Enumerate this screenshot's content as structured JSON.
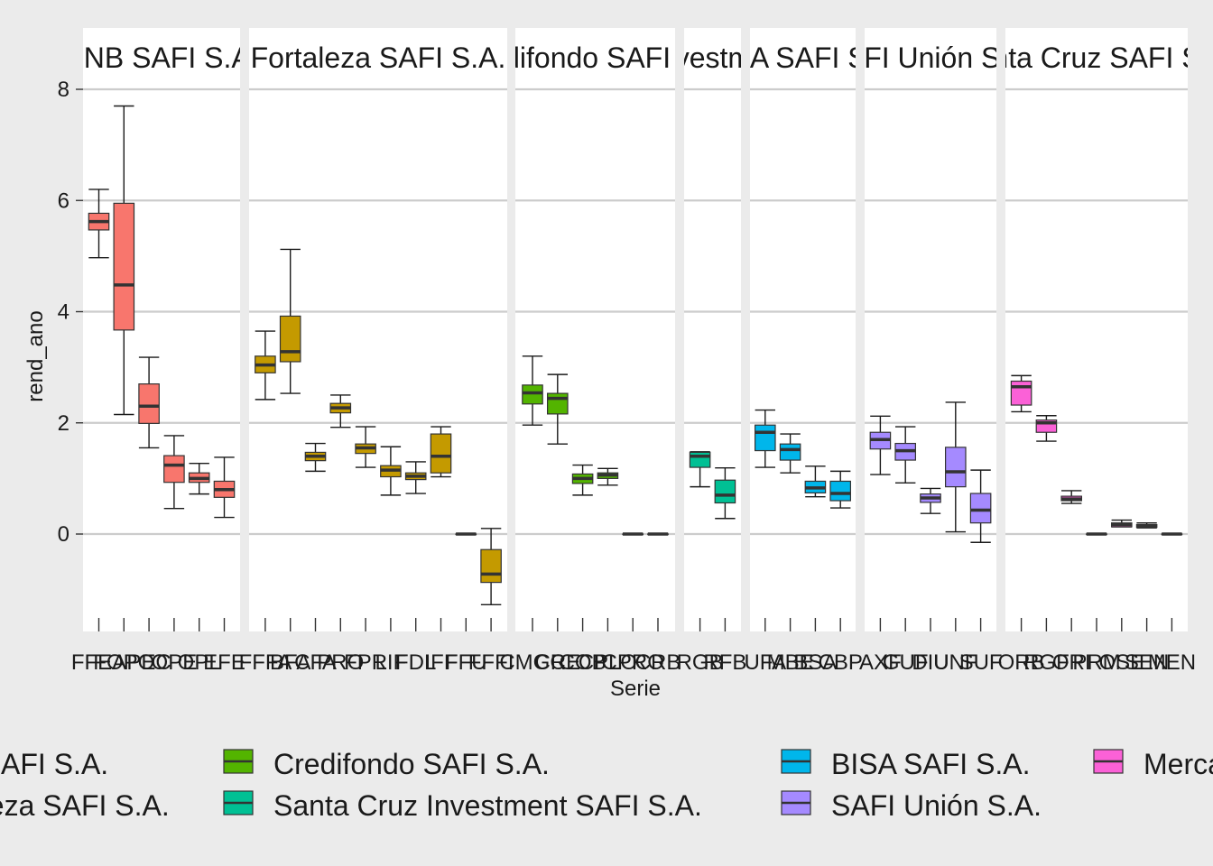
{
  "chart_data": {
    "type": "boxplot",
    "xlabel": "Serie",
    "ylabel": "rend_ano",
    "ylim": [
      -1.7,
      8.6
    ],
    "yticks": [
      0,
      2,
      4,
      6,
      8
    ],
    "legend_position": "bottom",
    "grid": true,
    "facets": [
      {
        "label": "BNB SAFI S.A.",
        "color": "#F8766D",
        "series": [
          {
            "name": "FFEA",
            "min": 4.97,
            "q1": 5.47,
            "median": 5.62,
            "q3": 5.77,
            "max": 6.2
          },
          {
            "name": "FOPO",
            "min": 2.15,
            "q1": 3.67,
            "median": 4.48,
            "q3": 5.95,
            "max": 7.7
          },
          {
            "name": "PEC",
            "min": 1.55,
            "q1": 1.99,
            "median": 2.3,
            "q3": 2.7,
            "max": 3.18
          },
          {
            "name": "OPE",
            "min": 0.46,
            "q1": 0.93,
            "median": 1.24,
            "q3": 1.41,
            "max": 1.77
          },
          {
            "name": "OPL",
            "min": 0.72,
            "q1": 0.93,
            "median": 1.0,
            "q3": 1.1,
            "max": 1.27
          },
          {
            "name": "EFE",
            "min": 0.3,
            "q1": 0.66,
            "median": 0.8,
            "q3": 0.95,
            "max": 1.38
          }
        ]
      },
      {
        "label": "Fortaleza SAFI S.A.",
        "color": "#C49A00",
        "series": [
          {
            "name": "FFFA",
            "min": 2.42,
            "q1": 2.9,
            "median": 3.04,
            "q3": 3.2,
            "max": 3.65
          },
          {
            "name": "BFA",
            "min": 2.53,
            "q1": 3.1,
            "median": 3.28,
            "q3": 3.92,
            "max": 5.12
          },
          {
            "name": "CFA",
            "min": 1.13,
            "q1": 1.32,
            "median": 1.4,
            "q3": 1.47,
            "max": 1.63
          },
          {
            "name": "PRO",
            "min": 1.92,
            "q1": 2.18,
            "median": 2.27,
            "q3": 2.35,
            "max": 2.5
          },
          {
            "name": "FPR",
            "min": 1.2,
            "q1": 1.45,
            "median": 1.55,
            "q3": 1.62,
            "max": 1.93
          },
          {
            "name": "LIF",
            "min": 0.7,
            "q1": 1.03,
            "median": 1.15,
            "q3": 1.23,
            "max": 1.57
          },
          {
            "name": "FDL",
            "min": 0.73,
            "q1": 0.98,
            "median": 1.04,
            "q3": 1.1,
            "max": 1.3
          },
          {
            "name": "IFF",
            "min": 1.03,
            "q1": 1.1,
            "median": 1.4,
            "q3": 1.8,
            "max": 1.93
          },
          {
            "name": "FFU",
            "min": 0.0,
            "q1": 0.0,
            "median": 0.0,
            "q3": 0.0,
            "max": 0.0
          },
          {
            "name": "FFFI",
            "min": -1.27,
            "q1": -0.87,
            "median": -0.72,
            "q3": -0.28,
            "max": 0.1
          }
        ]
      },
      {
        "label": "Credifondo SAFI S.A.",
        "color": "#53B400",
        "series": [
          {
            "name": "CMGC",
            "min": 1.96,
            "q1": 2.34,
            "median": 2.54,
            "q3": 2.68,
            "max": 3.2
          },
          {
            "name": "CRE",
            "min": 1.62,
            "q1": 2.16,
            "median": 2.44,
            "q3": 2.53,
            "max": 2.87
          },
          {
            "name": "COB",
            "min": 0.7,
            "q1": 0.91,
            "median": 1.0,
            "q3": 1.08,
            "max": 1.24
          },
          {
            "name": "CPLO",
            "min": 0.88,
            "q1": 1.0,
            "median": 1.06,
            "q3": 1.1,
            "max": 1.18
          },
          {
            "name": "CPRO",
            "min": 0.0,
            "q1": 0.0,
            "median": 0.0,
            "q3": 0.0,
            "max": 0.0
          },
          {
            "name": "CRB",
            "min": 0.0,
            "q1": 0.0,
            "median": 0.0,
            "q3": 0.0,
            "max": 0.0
          }
        ]
      },
      {
        "label": "Santa Cruz Investment SAFI S.A.",
        "color": "#00C094",
        "series": [
          {
            "name": "RGB",
            "min": 0.85,
            "q1": 1.2,
            "median": 1.4,
            "q3": 1.47,
            "max": 1.48
          },
          {
            "name": "RFB",
            "min": 0.28,
            "q1": 0.56,
            "median": 0.7,
            "q3": 0.97,
            "max": 1.19
          }
        ]
      },
      {
        "label": "BISA SAFI S.A.",
        "color": "#00B6EB",
        "series": [
          {
            "name": "UFA",
            "min": 1.2,
            "q1": 1.5,
            "median": 1.83,
            "q3": 1.96,
            "max": 2.23
          },
          {
            "name": "MBE",
            "min": 1.1,
            "q1": 1.33,
            "median": 1.52,
            "q3": 1.62,
            "max": 1.8
          },
          {
            "name": "BSA",
            "min": 0.67,
            "q1": 0.74,
            "median": 0.83,
            "q3": 0.95,
            "max": 1.22
          },
          {
            "name": "CBP",
            "min": 0.47,
            "q1": 0.6,
            "median": 0.73,
            "q3": 0.95,
            "max": 1.13
          }
        ]
      },
      {
        "label": "SAFI Unión S.A.",
        "color": "#A58AFF",
        "series": [
          {
            "name": "AXF",
            "min": 1.07,
            "q1": 1.53,
            "median": 1.7,
            "q3": 1.83,
            "max": 2.12
          },
          {
            "name": "GUF",
            "min": 0.92,
            "q1": 1.33,
            "median": 1.5,
            "q3": 1.63,
            "max": 1.93
          },
          {
            "name": "DIU",
            "min": 0.37,
            "q1": 0.57,
            "median": 0.65,
            "q3": 0.72,
            "max": 0.82
          },
          {
            "name": "UNF",
            "min": 0.04,
            "q1": 0.85,
            "median": 1.12,
            "q3": 1.56,
            "max": 2.37
          },
          {
            "name": "SUF",
            "min": -0.15,
            "q1": 0.2,
            "median": 0.43,
            "q3": 0.73,
            "max": 1.15
          }
        ]
      },
      {
        "label": "Santa Cruz SAFI S.A.",
        "color": "#FB61D7",
        "series": [
          {
            "name": "ORB",
            "min": 2.2,
            "q1": 2.32,
            "median": 2.65,
            "q3": 2.75,
            "max": 2.85
          },
          {
            "name": "RGF",
            "min": 1.67,
            "q1": 1.83,
            "median": 2.0,
            "q3": 2.05,
            "max": 2.13
          },
          {
            "name": "ORI",
            "min": 0.55,
            "q1": 0.6,
            "median": 0.63,
            "q3": 0.68,
            "max": 0.78
          },
          {
            "name": "PRM",
            "min": 0.0,
            "q1": 0.0,
            "median": 0.0,
            "q3": 0.0,
            "max": 0.0
          },
          {
            "name": "OSE",
            "min": 0.13,
            "q1": 0.13,
            "median": 0.17,
            "q3": 0.2,
            "max": 0.25
          },
          {
            "name": "SEN",
            "min": 0.11,
            "q1": 0.12,
            "median": 0.14,
            "q3": 0.17,
            "max": 0.2
          },
          {
            "name": "MEN",
            "min": 0.0,
            "q1": 0.0,
            "median": 0.0,
            "q3": 0.0,
            "max": 0.0
          }
        ]
      }
    ],
    "legend": [
      {
        "label": "BNB SAFI S.A.",
        "color": "#F8766D"
      },
      {
        "label": "Fortaleza SAFI S.A.",
        "color": "#C49A00"
      },
      {
        "label": "Credifondo SAFI S.A.",
        "color": "#53B400"
      },
      {
        "label": "Santa Cruz Investment SAFI S.A.",
        "color": "#00C094"
      },
      {
        "label": "BISA SAFI S.A.",
        "color": "#00B6EB"
      },
      {
        "label": "SAFI Unión S.A.",
        "color": "#A58AFF"
      },
      {
        "label": "Mercantil Santa Cruz SAFI S.A.",
        "color": "#FB61D7"
      }
    ]
  }
}
